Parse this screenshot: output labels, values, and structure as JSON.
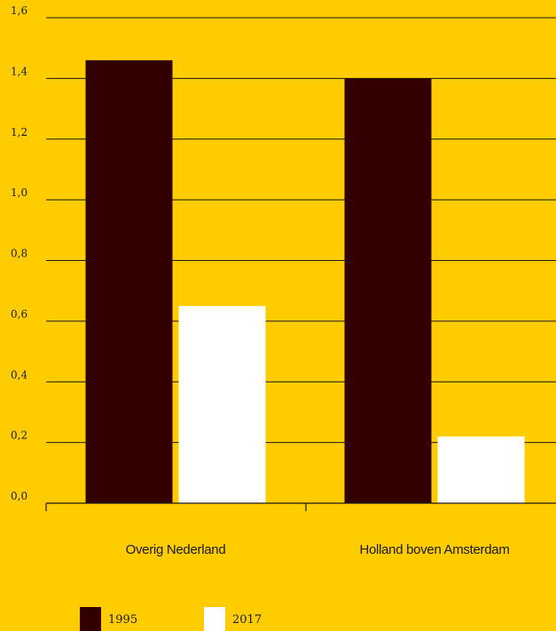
{
  "chart_data": {
    "type": "bar",
    "categories": [
      "Overig Nederland",
      "Holland boven Amsterdam"
    ],
    "series": [
      {
        "name": "1995",
        "values": [
          1.46,
          1.4
        ],
        "color": "#330000"
      },
      {
        "name": "2017",
        "values": [
          0.65,
          0.22
        ],
        "color": "#FFFFFF"
      }
    ],
    "ylim": [
      0,
      1.6
    ],
    "yticks": [
      "0,0",
      "0,2",
      "0,4",
      "0,6",
      "0,8",
      "1,0",
      "1,2",
      "1,4",
      "1,6"
    ],
    "grid": true,
    "legend_position": "bottom-left",
    "title": "",
    "xlabel": "",
    "ylabel": ""
  },
  "colors": {
    "background": "#FFCC00",
    "gridline": "#1a1a1a"
  }
}
